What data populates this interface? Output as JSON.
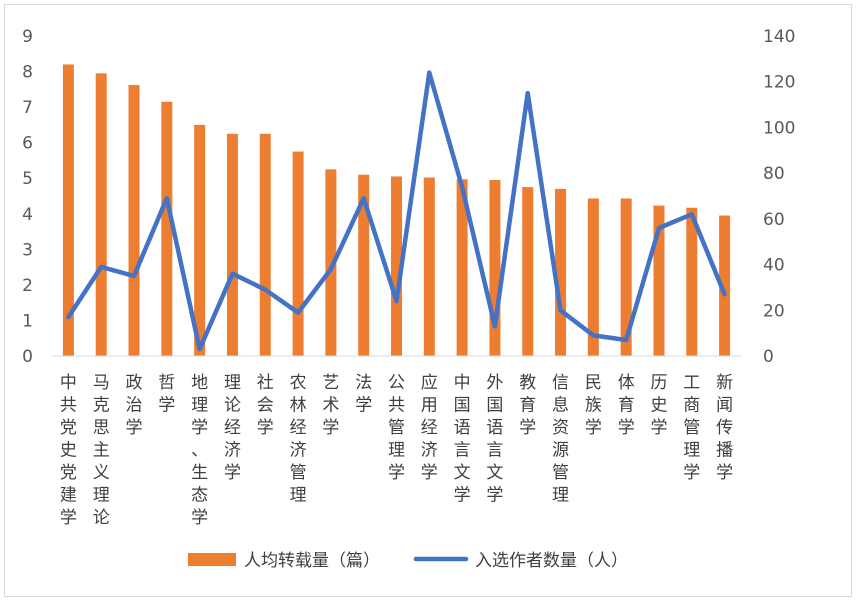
{
  "chart_data": {
    "type": "bar+line",
    "categories": [
      "中共党史党建学",
      "马克思主义理论",
      "政治学",
      "哲学",
      "地理学、生态学",
      "理论经济学",
      "社会学",
      "农林经济管理",
      "艺术学",
      "法学",
      "公共管理学",
      "应用经济学",
      "中国语言文学",
      "外国语言文学",
      "教育学",
      "信息资源管理",
      "民族学",
      "体育学",
      "历史学",
      "工商管理学",
      "新闻传播学"
    ],
    "series": [
      {
        "name": "人均转载量（篇）",
        "type": "bar",
        "axis": "left",
        "color": "#ED7D31",
        "values": [
          8.2,
          7.95,
          7.62,
          7.15,
          6.5,
          6.25,
          6.25,
          5.75,
          5.25,
          5.1,
          5.05,
          5.02,
          4.97,
          4.95,
          4.75,
          4.7,
          4.43,
          4.43,
          4.23,
          4.17,
          3.95
        ]
      },
      {
        "name": "入选作者数量（人）",
        "type": "line",
        "axis": "right",
        "color": "#4472C4",
        "values": [
          17,
          39,
          35,
          69,
          3,
          36,
          29,
          19,
          38,
          69,
          24,
          124,
          74,
          13,
          115,
          20,
          9,
          7,
          56,
          62,
          27
        ]
      }
    ],
    "yleft": {
      "min": 0,
      "max": 9,
      "ticks": [
        "0",
        "1",
        "2",
        "3",
        "4",
        "5",
        "6",
        "7",
        "8",
        "9"
      ]
    },
    "yright": {
      "min": 0,
      "max": 140,
      "ticks": [
        "0",
        "20",
        "40",
        "60",
        "80",
        "100",
        "120",
        "140"
      ]
    },
    "legend": "bottom",
    "grid": false
  }
}
